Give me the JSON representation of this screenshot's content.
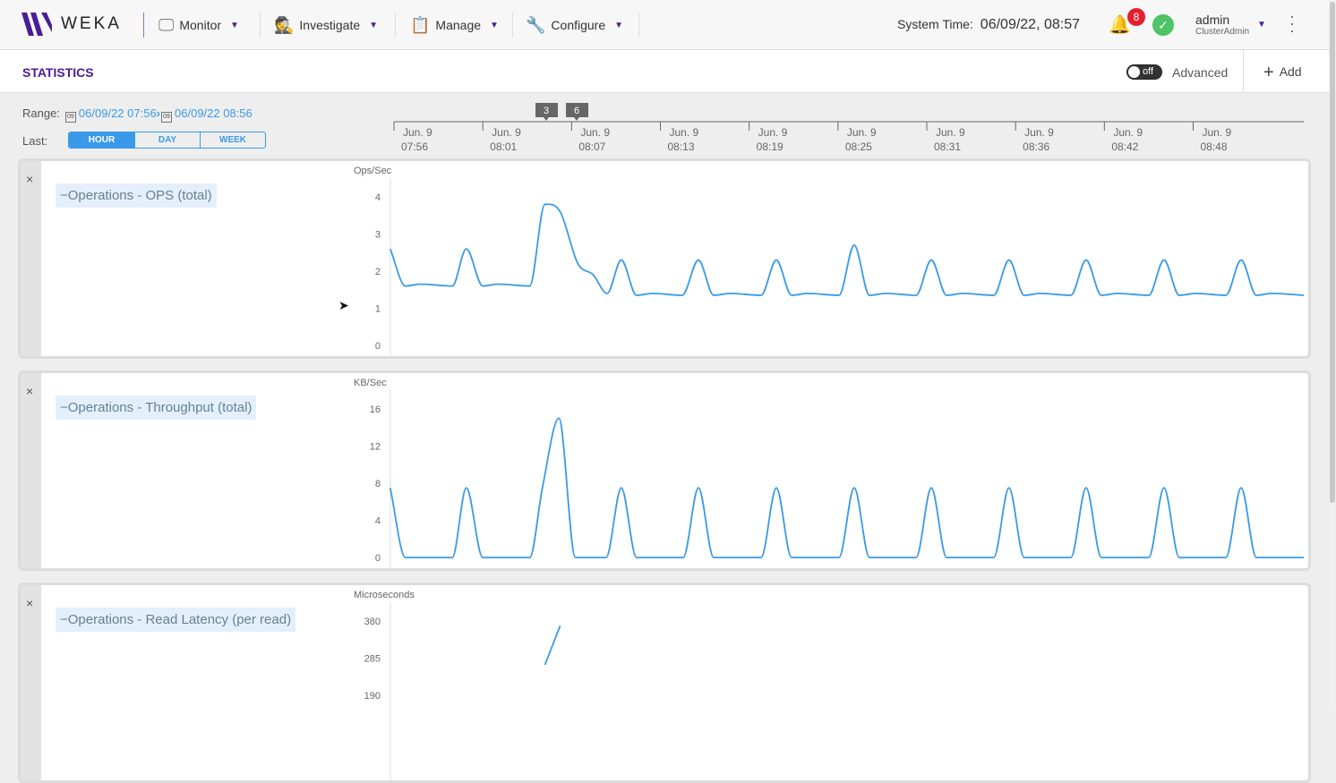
{
  "header": {
    "logo": "WEKA",
    "nav": [
      {
        "label": "Monitor",
        "icon": "monitor-icon"
      },
      {
        "label": "Investigate",
        "icon": "detective-icon"
      },
      {
        "label": "Manage",
        "icon": "clipboard-gear-icon"
      },
      {
        "label": "Configure",
        "icon": "wrench-icon"
      }
    ],
    "system_time_label": "System Time:",
    "system_time": "06/09/22, 08:57",
    "alerts_count": "8",
    "status": "ok",
    "user": "admin",
    "role": "ClusterAdmin"
  },
  "statbar": {
    "title": "STATISTICS",
    "toggle": "off",
    "advanced": "Advanced",
    "add": "Add"
  },
  "range": {
    "label": "Range:",
    "cal": "09",
    "from": "06/09/22 07:56",
    "to": "06/09/22 08:56",
    "last_label": "Last:",
    "options": [
      "HOUR",
      "DAY",
      "WEEK"
    ],
    "selected": "HOUR"
  },
  "timeline": {
    "ticks": [
      [
        "Jun. 9",
        "07:56"
      ],
      [
        "Jun. 9",
        "08:01"
      ],
      [
        "Jun. 9",
        "08:07"
      ],
      [
        "Jun. 9",
        "08:13"
      ],
      [
        "Jun. 9",
        "08:19"
      ],
      [
        "Jun. 9",
        "08:25"
      ],
      [
        "Jun. 9",
        "08:31"
      ],
      [
        "Jun. 9",
        "08:36"
      ],
      [
        "Jun. 9",
        "08:42"
      ],
      [
        "Jun. 9",
        "08:48"
      ]
    ],
    "tick_times": [
      "07:56:00",
      "08:01:50",
      "08:07:40",
      "08:13:30",
      "08:19:20",
      "08:25:10",
      "08:31:00",
      "08:36:50",
      "08:42:40",
      "08:48:30"
    ],
    "markers": [
      {
        "label": "3",
        "time": "08:06:00"
      },
      {
        "label": "6",
        "time": "08:08:00"
      }
    ]
  },
  "colors": {
    "line": "#3a9ae8",
    "accent": "#4a1d96"
  },
  "chart_data": [
    {
      "type": "line",
      "title": "Operations - OPS (total)",
      "ylabel": "Ops/Sec",
      "ylim": [
        0,
        4
      ],
      "yticks": [
        0,
        1,
        2,
        3,
        4
      ],
      "xlim": [
        "07:55:45",
        "08:55:46"
      ],
      "points": [
        [
          "07:55:45",
          2.6
        ],
        [
          "07:56:45",
          1.6
        ],
        [
          "07:57:45",
          1.65
        ],
        [
          "07:59:50",
          1.6
        ],
        [
          "08:00:45",
          2.6
        ],
        [
          "08:01:50",
          1.6
        ],
        [
          "08:02:50",
          1.65
        ],
        [
          "08:04:55",
          1.6
        ],
        [
          "08:05:55",
          3.8
        ],
        [
          "08:06:55",
          3.6
        ],
        [
          "08:08:05",
          2.2
        ],
        [
          "08:09:05",
          1.9
        ],
        [
          "08:10:00",
          1.4
        ],
        [
          "08:10:56",
          2.3
        ],
        [
          "08:11:56",
          1.35
        ],
        [
          "08:13:00",
          1.4
        ],
        [
          "08:14:56",
          1.35
        ],
        [
          "08:16:00",
          2.3
        ],
        [
          "08:17:00",
          1.35
        ],
        [
          "08:18:05",
          1.4
        ],
        [
          "08:20:07",
          1.35
        ],
        [
          "08:21:07",
          2.3
        ],
        [
          "08:22:07",
          1.35
        ],
        [
          "08:23:10",
          1.4
        ],
        [
          "08:25:14",
          1.35
        ],
        [
          "08:26:14",
          2.7
        ],
        [
          "08:27:14",
          1.35
        ],
        [
          "08:28:18",
          1.4
        ],
        [
          "08:30:18",
          1.35
        ],
        [
          "08:31:18",
          2.3
        ],
        [
          "08:32:18",
          1.35
        ],
        [
          "08:33:22",
          1.4
        ],
        [
          "08:35:24",
          1.35
        ],
        [
          "08:36:24",
          2.3
        ],
        [
          "08:37:24",
          1.35
        ],
        [
          "08:38:28",
          1.4
        ],
        [
          "08:40:28",
          1.35
        ],
        [
          "08:41:28",
          2.3
        ],
        [
          "08:42:28",
          1.35
        ],
        [
          "08:43:30",
          1.4
        ],
        [
          "08:45:35",
          1.35
        ],
        [
          "08:46:35",
          2.3
        ],
        [
          "08:47:35",
          1.35
        ],
        [
          "08:48:40",
          1.4
        ],
        [
          "08:50:39",
          1.35
        ],
        [
          "08:51:39",
          2.3
        ],
        [
          "08:52:39",
          1.35
        ],
        [
          "08:53:40",
          1.4
        ],
        [
          "08:55:46",
          1.35
        ]
      ]
    },
    {
      "type": "line",
      "title": "Operations - Throughput (total)",
      "ylabel": "KB/Sec",
      "ylim": [
        0,
        16
      ],
      "yticks": [
        0,
        4,
        8,
        12,
        16
      ],
      "xlim": [
        "07:55:45",
        "08:55:46"
      ],
      "points": [
        [
          "07:55:45",
          7.5
        ],
        [
          "07:56:45",
          0
        ],
        [
          "07:59:50",
          0
        ],
        [
          "08:00:45",
          7.5
        ],
        [
          "08:01:50",
          0
        ],
        [
          "08:04:55",
          0
        ],
        [
          "08:05:45",
          7.5
        ],
        [
          "08:06:50",
          15
        ],
        [
          "08:07:55",
          0
        ],
        [
          "08:09:56",
          0
        ],
        [
          "08:10:56",
          7.5
        ],
        [
          "08:11:56",
          0
        ],
        [
          "08:15:00",
          0
        ],
        [
          "08:16:00",
          7.5
        ],
        [
          "08:17:00",
          0
        ],
        [
          "08:20:07",
          0
        ],
        [
          "08:21:07",
          7.5
        ],
        [
          "08:22:07",
          0
        ],
        [
          "08:25:14",
          0
        ],
        [
          "08:26:14",
          7.5
        ],
        [
          "08:27:14",
          0
        ],
        [
          "08:30:18",
          0
        ],
        [
          "08:31:18",
          7.5
        ],
        [
          "08:32:18",
          0
        ],
        [
          "08:35:24",
          0
        ],
        [
          "08:36:24",
          7.5
        ],
        [
          "08:37:24",
          0
        ],
        [
          "08:40:28",
          0
        ],
        [
          "08:41:28",
          7.5
        ],
        [
          "08:42:28",
          0
        ],
        [
          "08:45:35",
          0
        ],
        [
          "08:46:35",
          7.5
        ],
        [
          "08:47:35",
          0
        ],
        [
          "08:50:39",
          0
        ],
        [
          "08:51:39",
          7.5
        ],
        [
          "08:52:39",
          0
        ],
        [
          "08:55:46",
          0
        ]
      ]
    },
    {
      "type": "line",
      "title": "Operations - Read Latency (per read)",
      "ylabel": "Microseconds",
      "ylim": [
        0,
        380
      ],
      "yticks": [
        190,
        285,
        380
      ],
      "xlim": [
        "07:55:45",
        "08:55:46"
      ],
      "points": [
        [
          "08:05:55",
          268
        ],
        [
          "08:06:55",
          368
        ]
      ]
    }
  ]
}
